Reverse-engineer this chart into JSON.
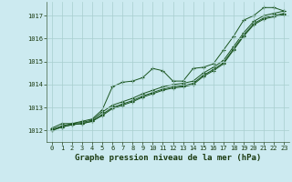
{
  "title": "Graphe pression niveau de la mer (hPa)",
  "bg_color": "#cceaf0",
  "grid_color": "#a8cece",
  "line_color": "#1a5520",
  "xlim": [
    -0.5,
    23.5
  ],
  "ylim": [
    1011.5,
    1017.6
  ],
  "yticks": [
    1012,
    1013,
    1014,
    1015,
    1016,
    1017
  ],
  "xticks": [
    0,
    1,
    2,
    3,
    4,
    5,
    6,
    7,
    8,
    9,
    10,
    11,
    12,
    13,
    14,
    15,
    16,
    17,
    18,
    19,
    20,
    21,
    22,
    23
  ],
  "series": [
    [
      1012.1,
      1012.3,
      1012.3,
      1012.4,
      1012.5,
      1012.9,
      1013.9,
      1014.1,
      1014.15,
      1014.3,
      1014.7,
      1014.6,
      1014.15,
      1014.15,
      1014.7,
      1014.75,
      1014.9,
      1015.5,
      1016.1,
      1016.8,
      1017.0,
      1017.35,
      1017.35,
      1017.2
    ],
    [
      1012.05,
      1012.2,
      1012.3,
      1012.35,
      1012.45,
      1012.8,
      1013.1,
      1013.25,
      1013.4,
      1013.6,
      1013.75,
      1013.9,
      1014.0,
      1014.05,
      1014.15,
      1014.5,
      1014.75,
      1015.05,
      1015.65,
      1016.25,
      1016.75,
      1017.0,
      1017.1,
      1017.2
    ],
    [
      1012.0,
      1012.15,
      1012.25,
      1012.3,
      1012.4,
      1012.7,
      1013.0,
      1013.15,
      1013.3,
      1013.5,
      1013.65,
      1013.8,
      1013.9,
      1013.95,
      1014.05,
      1014.4,
      1014.65,
      1014.95,
      1015.55,
      1016.15,
      1016.65,
      1016.9,
      1017.0,
      1017.1
    ],
    [
      1012.0,
      1012.15,
      1012.25,
      1012.3,
      1012.4,
      1012.65,
      1012.95,
      1013.1,
      1013.25,
      1013.45,
      1013.6,
      1013.75,
      1013.85,
      1013.9,
      1014.0,
      1014.35,
      1014.6,
      1014.9,
      1015.5,
      1016.1,
      1016.6,
      1016.85,
      1016.95,
      1017.05
    ]
  ],
  "marker": "+",
  "marker_size": 3.5,
  "marker_ew": 0.8,
  "linewidth": 0.7,
  "title_fontsize": 6.5,
  "tick_fontsize": 5.0,
  "figsize": [
    3.2,
    2.0
  ],
  "dpi": 100
}
